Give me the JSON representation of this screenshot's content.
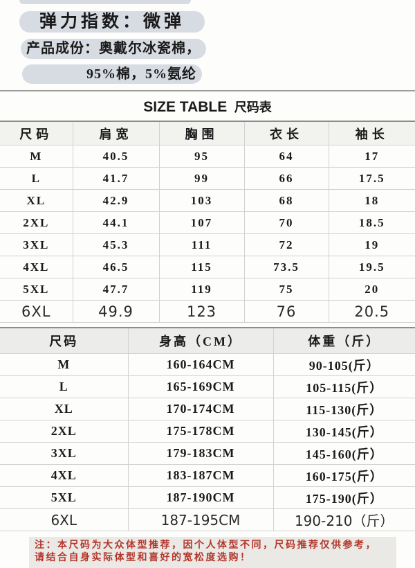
{
  "product_info": {
    "elasticity": "弹力指数：微弹",
    "composition_line1": "产品成份：奥戴尔冰瓷棉，",
    "composition_line2": "95%棉，5%氨纶"
  },
  "title": {
    "en": "SIZE TABLE",
    "zh": "尺码表"
  },
  "size_table": {
    "columns": [
      "尺码",
      "肩宽",
      "胸围",
      "衣长",
      "袖长"
    ],
    "rows": [
      {
        "size": "M",
        "values": [
          "40.5",
          "95",
          "64",
          "17"
        ]
      },
      {
        "size": "L",
        "values": [
          "41.7",
          "99",
          "66",
          "17.5"
        ]
      },
      {
        "size": "XL",
        "values": [
          "42.9",
          "103",
          "68",
          "18"
        ]
      },
      {
        "size": "2XL",
        "values": [
          "44.1",
          "107",
          "70",
          "18.5"
        ]
      },
      {
        "size": "3XL",
        "values": [
          "45.3",
          "111",
          "72",
          "19"
        ]
      },
      {
        "size": "4XL",
        "values": [
          "46.5",
          "115",
          "73.5",
          "19.5"
        ]
      },
      {
        "size": "5XL",
        "values": [
          "47.7",
          "119",
          "75",
          "20"
        ]
      },
      {
        "size": "6XL",
        "values": [
          "49.9",
          "123",
          "76",
          "20.5"
        ]
      }
    ]
  },
  "height_weight_table": {
    "columns": [
      "尺码",
      "身高（CM）",
      "体重（斤）"
    ],
    "rows": [
      {
        "size": "M",
        "values": [
          "160-164CM",
          "90-105(斤）"
        ]
      },
      {
        "size": "L",
        "values": [
          "165-169CM",
          "105-115(斤）"
        ]
      },
      {
        "size": "XL",
        "values": [
          "170-174CM",
          "115-130(斤）"
        ]
      },
      {
        "size": "2XL",
        "values": [
          "175-178CM",
          "130-145(斤）"
        ]
      },
      {
        "size": "3XL",
        "values": [
          "179-183CM",
          "145-160(斤）"
        ]
      },
      {
        "size": "4XL",
        "values": [
          "183-187CM",
          "160-175(斤）"
        ]
      },
      {
        "size": "5XL",
        "values": [
          "187-190CM",
          "175-190(斤）"
        ]
      },
      {
        "size": "6XL",
        "values": [
          "187-195CM",
          "190-210（斤）"
        ]
      }
    ]
  },
  "note": {
    "line1": "注：本尺码为大众体型推荐，因个人体型不同，尺码推荐仅供参考，",
    "line2": "请结合自身实际体型和喜好的宽松度选购！"
  },
  "colors": {
    "pill_bg": "#d7dbe2",
    "note_bg": "#ebe9e5",
    "note_red": "#b3372c"
  }
}
